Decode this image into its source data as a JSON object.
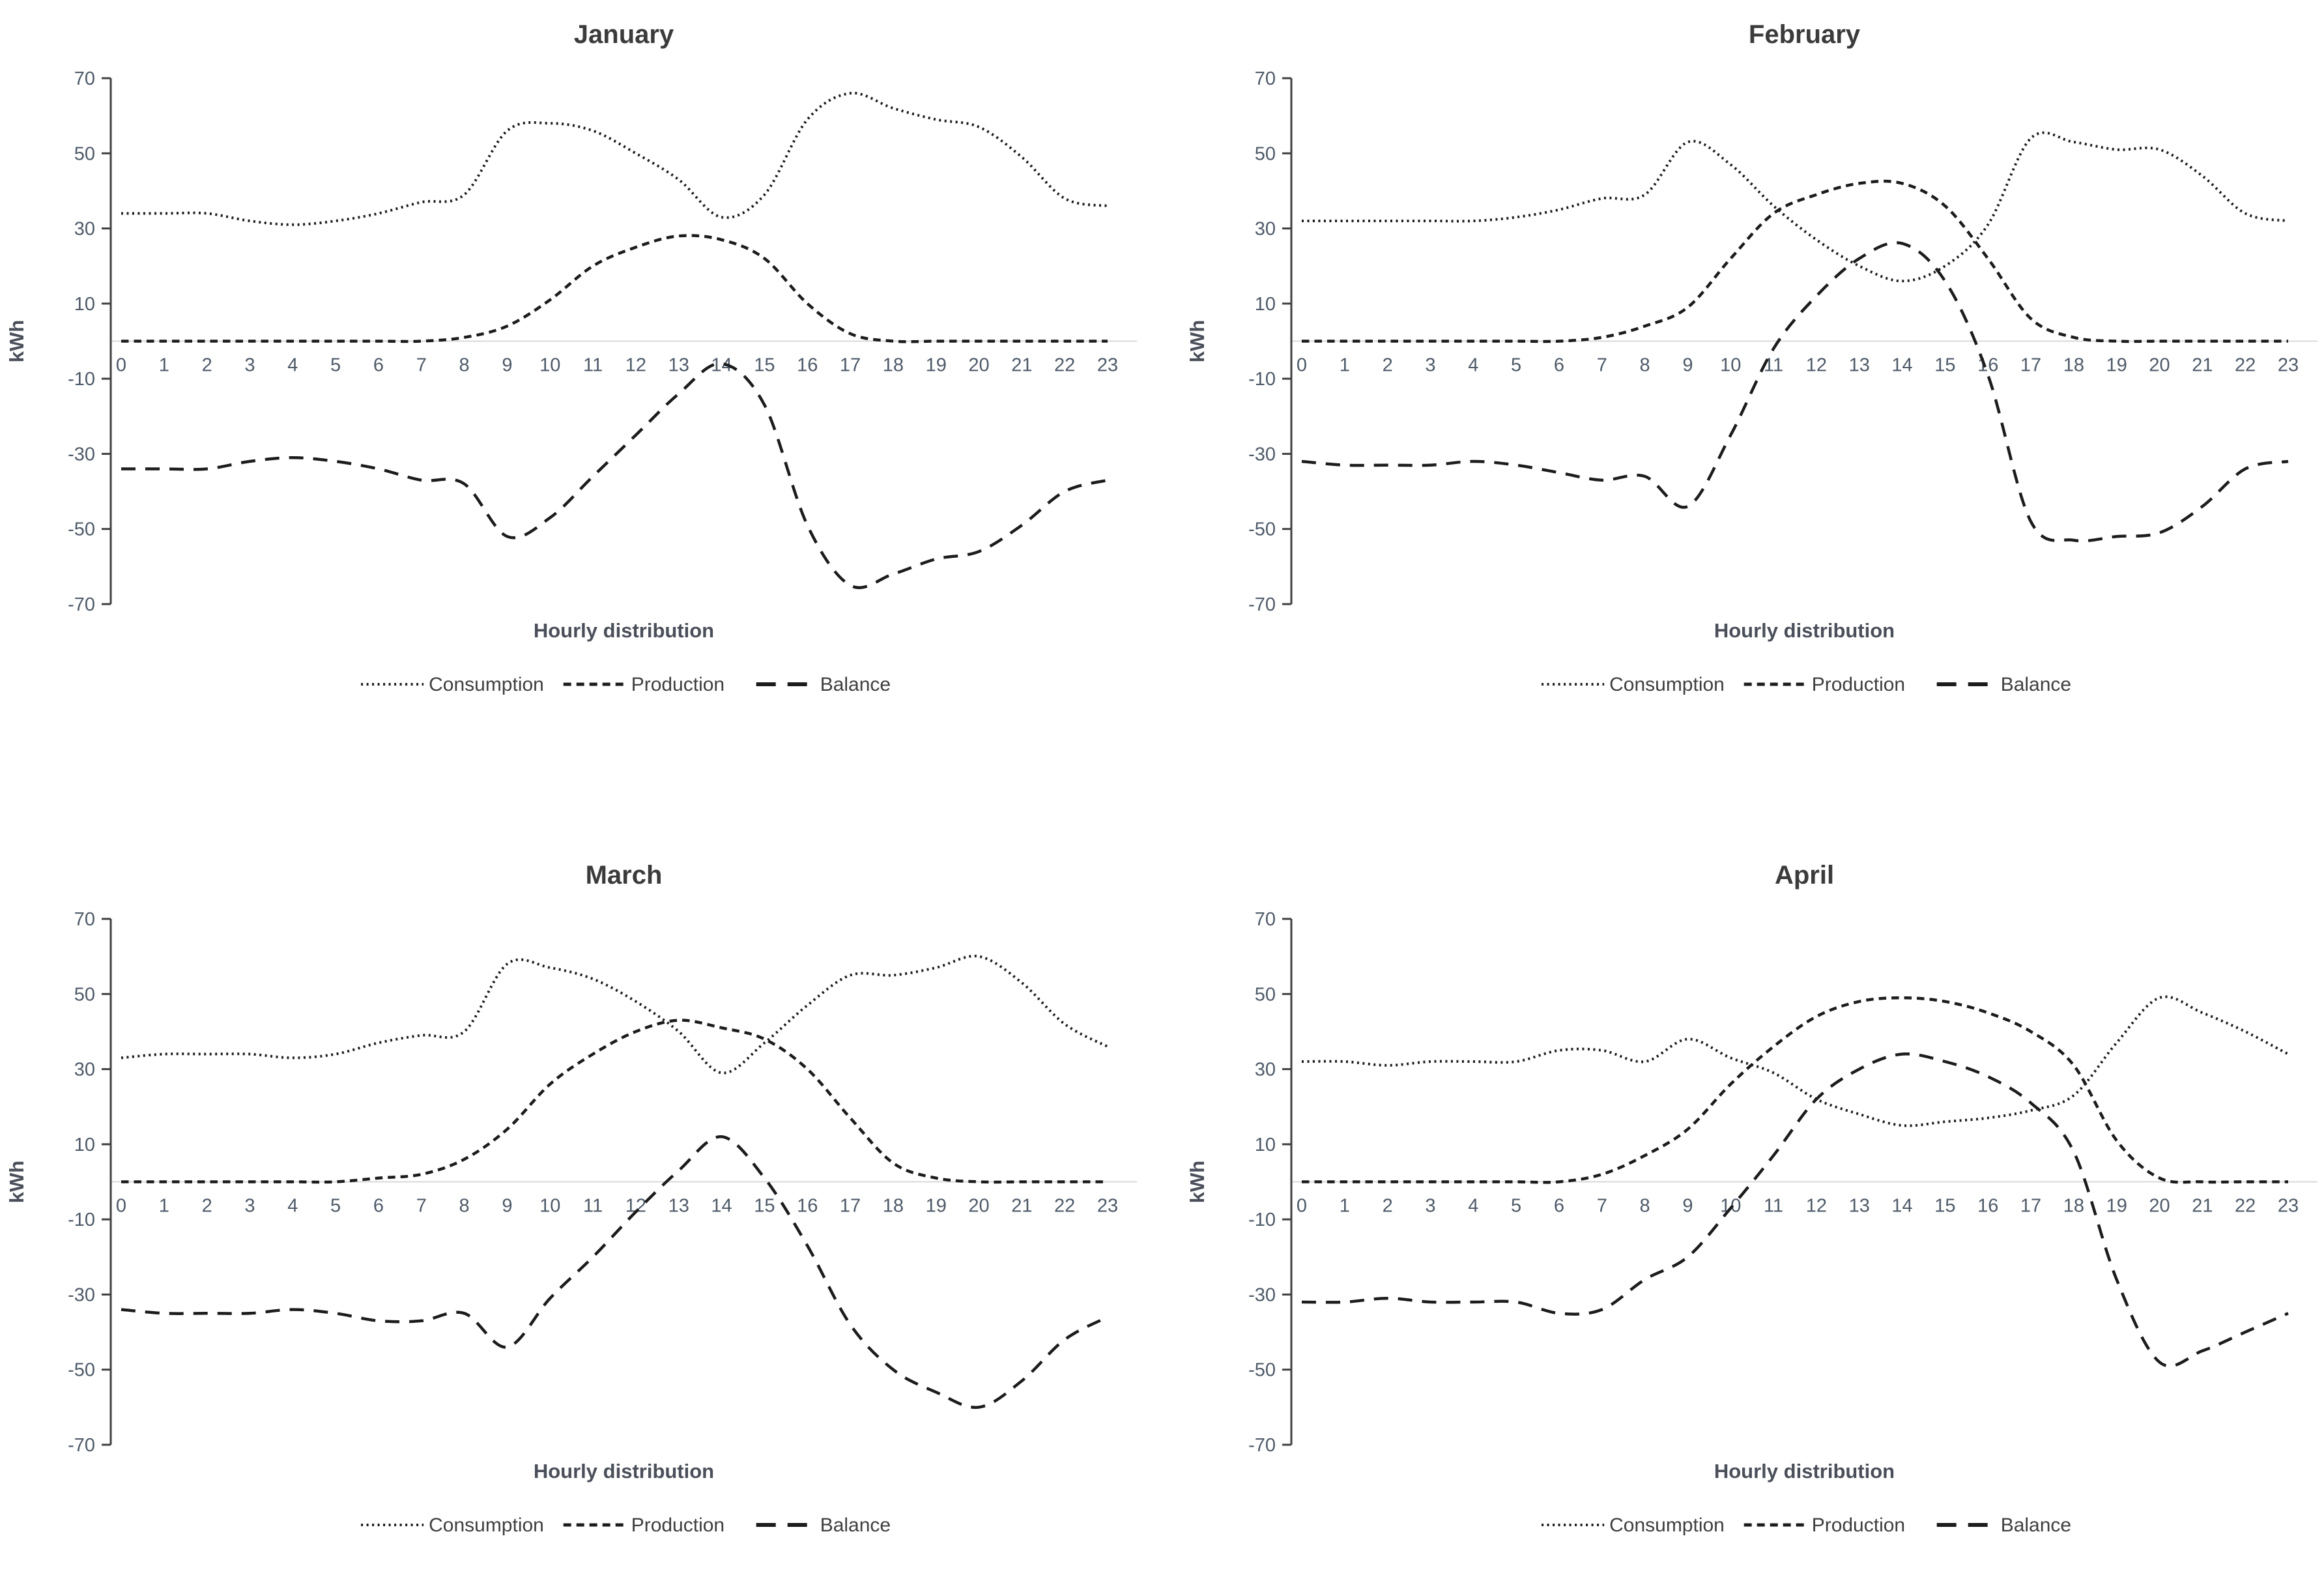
{
  "page": {
    "background": "#ffffff",
    "description": "Four monthly line charts of hourly electricity consumption, production and balance"
  },
  "colors": {
    "line": "#1c1c1c",
    "axis": "#3f3f3f",
    "zero_line": "#d9d9d9",
    "tick_label": "#4e5a68",
    "title": "#3b3b3b",
    "axis_title": "#4a4f5a",
    "legend_text": "#3f3f3f"
  },
  "chart_data": [
    {
      "type": "line",
      "title": "January",
      "xlabel": "Hourly distribution",
      "ylabel": "kWh",
      "x": [
        0,
        1,
        2,
        3,
        4,
        5,
        6,
        7,
        8,
        9,
        10,
        11,
        12,
        13,
        14,
        15,
        16,
        17,
        18,
        19,
        20,
        21,
        22,
        23
      ],
      "ylim": [
        -70,
        70
      ],
      "yticks": [
        70,
        50,
        30,
        10,
        -10,
        -30,
        -50,
        -70
      ],
      "grid": "zero-line-only",
      "legend_position": "bottom",
      "series": [
        {
          "name": "Consumption",
          "style": "dotted",
          "values": [
            34,
            34,
            34,
            32,
            31,
            32,
            34,
            37,
            39,
            56,
            58,
            56,
            50,
            43,
            33,
            39,
            59,
            66,
            62,
            59,
            57,
            49,
            38,
            36
          ]
        },
        {
          "name": "Production",
          "style": "short-dash",
          "values": [
            0,
            0,
            0,
            0,
            0,
            0,
            0,
            0,
            1,
            4,
            11,
            20,
            25,
            28,
            27,
            22,
            10,
            2,
            0,
            0,
            0,
            0,
            0,
            0
          ]
        },
        {
          "name": "Balance",
          "style": "long-dash",
          "values": [
            -34,
            -34,
            -34,
            -32,
            -31,
            -32,
            -34,
            -37,
            -38,
            -52,
            -47,
            -36,
            -25,
            -14,
            -6,
            -17,
            -49,
            -65,
            -62,
            -58,
            -56,
            -49,
            -40,
            -37
          ]
        }
      ]
    },
    {
      "type": "line",
      "title": "February",
      "xlabel": "Hourly distribution",
      "ylabel": "kWh",
      "x": [
        0,
        1,
        2,
        3,
        4,
        5,
        6,
        7,
        8,
        9,
        10,
        11,
        12,
        13,
        14,
        15,
        16,
        17,
        18,
        19,
        20,
        21,
        22,
        23
      ],
      "ylim": [
        -70,
        70
      ],
      "yticks": [
        70,
        50,
        30,
        10,
        -10,
        -30,
        -50,
        -70
      ],
      "grid": "zero-line-only",
      "legend_position": "bottom",
      "series": [
        {
          "name": "Consumption",
          "style": "dotted",
          "values": [
            32,
            32,
            32,
            32,
            32,
            33,
            35,
            38,
            39,
            53,
            47,
            36,
            27,
            20,
            16,
            20,
            31,
            54,
            53,
            51,
            51,
            44,
            34,
            32
          ]
        },
        {
          "name": "Production",
          "style": "short-dash",
          "values": [
            0,
            0,
            0,
            0,
            0,
            0,
            0,
            1,
            4,
            9,
            22,
            34,
            39,
            42,
            42,
            36,
            22,
            6,
            1,
            0,
            0,
            0,
            0,
            0
          ]
        },
        {
          "name": "Balance",
          "style": "long-dash",
          "values": [
            -32,
            -33,
            -33,
            -33,
            -32,
            -33,
            -35,
            -37,
            -36,
            -44,
            -25,
            -2,
            12,
            22,
            26,
            16,
            -9,
            -48,
            -53,
            -52,
            -51,
            -44,
            -34,
            -32
          ]
        }
      ]
    },
    {
      "type": "line",
      "title": "March",
      "xlabel": "Hourly distribution",
      "ylabel": "kWh",
      "x": [
        0,
        1,
        2,
        3,
        4,
        5,
        6,
        7,
        8,
        9,
        10,
        11,
        12,
        13,
        14,
        15,
        16,
        17,
        18,
        19,
        20,
        21,
        22,
        23
      ],
      "ylim": [
        -70,
        70
      ],
      "yticks": [
        70,
        50,
        30,
        10,
        -10,
        -30,
        -50,
        -70
      ],
      "grid": "zero-line-only",
      "legend_position": "bottom",
      "series": [
        {
          "name": "Consumption",
          "style": "dotted",
          "values": [
            33,
            34,
            34,
            34,
            33,
            34,
            37,
            39,
            40,
            58,
            57,
            54,
            48,
            40,
            29,
            37,
            47,
            55,
            55,
            57,
            60,
            53,
            42,
            36
          ]
        },
        {
          "name": "Production",
          "style": "short-dash",
          "values": [
            0,
            0,
            0,
            0,
            0,
            0,
            1,
            2,
            6,
            14,
            26,
            34,
            40,
            43,
            41,
            38,
            30,
            17,
            5,
            1,
            0,
            0,
            0,
            0
          ]
        },
        {
          "name": "Balance",
          "style": "long-dash",
          "values": [
            -34,
            -35,
            -35,
            -35,
            -34,
            -35,
            -37,
            -37,
            -35,
            -44,
            -31,
            -20,
            -8,
            3,
            12,
            1,
            -17,
            -38,
            -50,
            -56,
            -60,
            -53,
            -42,
            -36
          ]
        }
      ]
    },
    {
      "type": "line",
      "title": "April",
      "xlabel": "Hourly distribution",
      "ylabel": "kWh",
      "x": [
        0,
        1,
        2,
        3,
        4,
        5,
        6,
        7,
        8,
        9,
        10,
        11,
        12,
        13,
        14,
        15,
        16,
        17,
        18,
        19,
        20,
        21,
        22,
        23
      ],
      "ylim": [
        -70,
        70
      ],
      "yticks": [
        70,
        50,
        30,
        10,
        -10,
        -30,
        -50,
        -70
      ],
      "grid": "zero-line-only",
      "legend_position": "bottom",
      "series": [
        {
          "name": "Consumption",
          "style": "dotted",
          "values": [
            32,
            32,
            31,
            32,
            32,
            32,
            35,
            35,
            32,
            38,
            33,
            29,
            22,
            18,
            15,
            16,
            17,
            19,
            23,
            37,
            49,
            45,
            40,
            34
          ]
        },
        {
          "name": "Production",
          "style": "short-dash",
          "values": [
            0,
            0,
            0,
            0,
            0,
            0,
            0,
            2,
            7,
            14,
            26,
            36,
            44,
            48,
            49,
            48,
            45,
            40,
            31,
            11,
            1,
            0,
            0,
            0
          ]
        },
        {
          "name": "Balance",
          "style": "long-dash",
          "values": [
            -32,
            -32,
            -31,
            -32,
            -32,
            -32,
            -35,
            -34,
            -26,
            -20,
            -7,
            7,
            22,
            30,
            34,
            32,
            28,
            21,
            8,
            -26,
            -48,
            -45,
            -40,
            -35
          ]
        }
      ]
    }
  ]
}
